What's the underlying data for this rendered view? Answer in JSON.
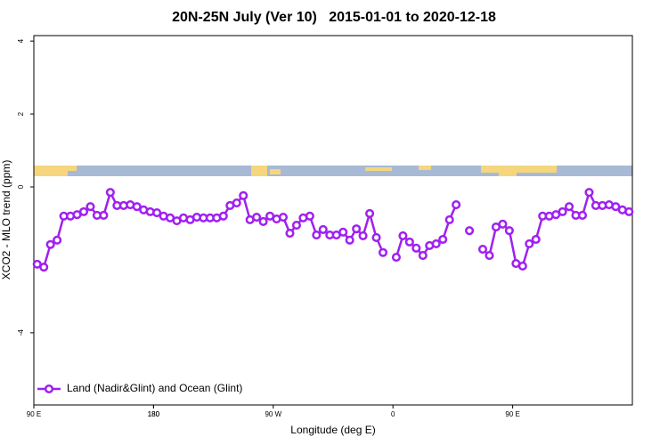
{
  "chart_data": {
    "type": "line",
    "title": "20N-25N July (Ver 10)   2015-01-01 to 2020-12-18",
    "x_label": "Longitude (deg E)",
    "y_label": "XCO2 - MLO trend (ppm)",
    "x": [
      92.5,
      97.5,
      102.5,
      107.5,
      112.5,
      117.5,
      122.5,
      127.5,
      132.5,
      137.5,
      142.5,
      147.5,
      152.5,
      157.5,
      162.5,
      167.5,
      172.5,
      177.5,
      182.5,
      187.5,
      192.5,
      197.5,
      202.5,
      207.5,
      212.5,
      217.5,
      222.5,
      227.5,
      232.5,
      237.5,
      242.5,
      247.5,
      252.5,
      257.5,
      262.5,
      267.5,
      272.5,
      277.5,
      282.5,
      287.5,
      292.5,
      297.5,
      302.5,
      307.5,
      312.5,
      317.5,
      322.5,
      327.5,
      332.5,
      337.5,
      342.5,
      347.5,
      352.5,
      357.5,
      362.5,
      367.5,
      372.5,
      377.5,
      382.5,
      387.5,
      392.5,
      397.5,
      402.5,
      407.5,
      412.5,
      417.5,
      422.5,
      427.5,
      432.5,
      437.5,
      442.5,
      447.5,
      452.5,
      457.5,
      462.5,
      467.5,
      472.5,
      477.5,
      482.5,
      487.5,
      492.5,
      497.5,
      502.5,
      507.5,
      512.5,
      517.5,
      522.5,
      527.5,
      532.5,
      537.5
    ],
    "series": [
      {
        "name": "Land (Nadir&Glint) and Ocean (Glint)",
        "color": "#a020f0",
        "values": [
          -2.12,
          -2.2,
          -1.58,
          -1.46,
          -0.8,
          -0.8,
          -0.76,
          -0.68,
          -0.54,
          -0.78,
          -0.78,
          -0.15,
          -0.51,
          -0.51,
          -0.49,
          -0.54,
          -0.63,
          -0.68,
          -0.71,
          -0.8,
          -0.85,
          -0.93,
          -0.85,
          -0.9,
          -0.83,
          -0.85,
          -0.85,
          -0.85,
          -0.8,
          -0.51,
          -0.44,
          -0.24,
          -0.9,
          -0.83,
          -0.95,
          -0.8,
          -0.88,
          -0.83,
          -1.27,
          -1.05,
          -0.85,
          -0.8,
          -1.32,
          -1.17,
          -1.32,
          -1.32,
          -1.24,
          -1.46,
          -1.15,
          -1.34,
          -0.73,
          -1.39,
          -1.8,
          null,
          -1.93,
          -1.34,
          -1.51,
          -1.68,
          -1.88,
          -1.61,
          -1.56,
          -1.44,
          -0.9,
          -0.49,
          null,
          -1.2,
          null,
          -1.71,
          -1.88,
          -1.1,
          -1.02,
          -1.2,
          -2.1,
          -2.17,
          -1.56,
          -1.44,
          -0.8,
          -0.8,
          -0.76,
          -0.68,
          -0.54,
          -0.78,
          -0.78,
          -0.15,
          -0.51,
          -0.51,
          -0.49,
          -0.54,
          -0.63,
          -0.68
        ]
      }
    ],
    "xlim": [
      90,
      540
    ],
    "xticks": [
      {
        "value": 90,
        "label": "90 E"
      },
      180,
      {
        "value": 270,
        "label": "90 W"
      },
      {
        "value": 360,
        "label": "0"
      },
      {
        "value": 450,
        "label": "90 E"
      },
      180.0001
    ],
    "ylim": [
      -5.98,
      4.15
    ],
    "yticks": [
      -4,
      0,
      2,
      4
    ],
    "legend": "bottom-left"
  }
}
